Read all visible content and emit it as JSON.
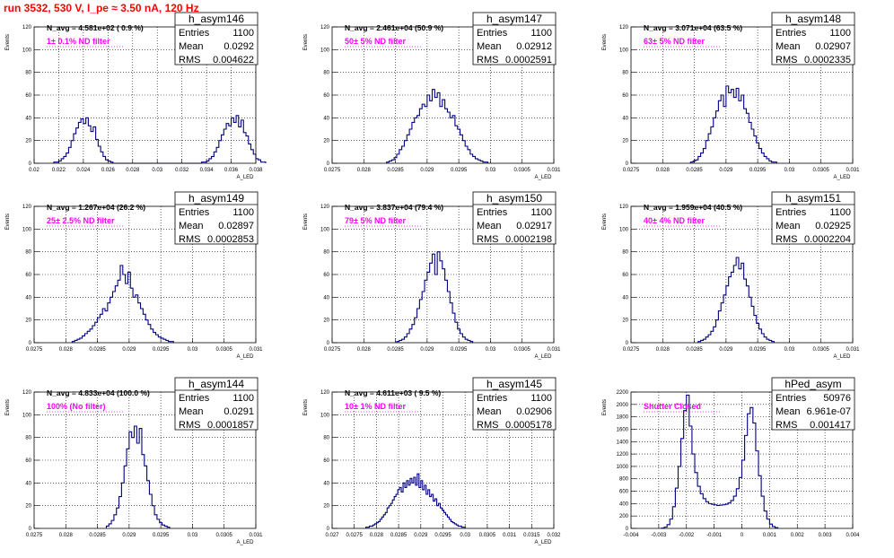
{
  "header": {
    "run_label": "run 3532,   530 V, I_pe ≈ 3.50 nA, 120 Hz"
  },
  "colors": {
    "header": "#ff0000",
    "filter_text": "#ff00ff",
    "histogram": "#000080",
    "grid": "#000000"
  },
  "chart_data": [
    {
      "type": "bar",
      "name": "h_asym146",
      "title": "N_avg = 4.581e+02 ( 0.9 %)",
      "annotation": "1± 0.1% ND filter",
      "xlabel": "A_LED",
      "ylabel": "Events",
      "xlim": [
        0.02,
        0.038
      ],
      "ylim": [
        0,
        120
      ],
      "xticks": [
        0.02,
        0.022,
        0.024,
        0.026,
        0.028,
        0.03,
        0.032,
        0.034,
        0.036,
        0.038
      ],
      "xtick_labels": [
        "0.02",
        "0.022",
        "0.024",
        "0.026",
        "0.028",
        "0.03",
        "0.032",
        "0.034",
        "0.036",
        "0.038"
      ],
      "yticks": [
        0,
        20,
        40,
        60,
        80,
        100,
        120
      ],
      "stats": {
        "title": "h_asym146",
        "rows": [
          [
            "Entries",
            "1100"
          ],
          [
            "Mean",
            "0.0292"
          ],
          [
            "RMS",
            "0.004622"
          ]
        ]
      },
      "bins": {
        "x0": 0.0216,
        "width": 0.0002,
        "values": [
          1,
          1,
          2,
          4,
          6,
          9,
          14,
          20,
          26,
          31,
          36,
          39,
          35,
          40,
          33,
          28,
          32,
          21,
          15,
          10,
          6,
          3,
          2,
          1,
          0,
          0,
          0,
          0,
          0,
          0,
          0,
          0,
          0,
          0,
          0,
          0,
          0,
          0,
          0,
          0,
          0,
          0,
          0,
          0,
          0,
          0,
          0,
          0,
          0,
          0,
          0,
          0,
          0,
          0,
          0,
          0,
          0,
          0,
          0,
          0,
          1,
          1,
          2,
          4,
          6,
          10,
          14,
          20,
          25,
          30,
          35,
          33,
          40,
          36,
          42,
          32,
          38,
          27,
          24,
          17,
          12,
          8,
          4,
          3,
          1,
          1
        ]
      }
    },
    {
      "type": "bar",
      "name": "h_asym147",
      "title": "N_avg = 2.461e+04 (50.9 %)",
      "annotation": "50± 5% ND filter",
      "xlabel": "A_LED",
      "ylabel": "Events",
      "xlim": [
        0.0275,
        0.031
      ],
      "ylim": [
        0,
        120
      ],
      "xticks": [
        0.0275,
        0.028,
        0.0285,
        0.029,
        0.0295,
        0.03,
        0.0305,
        0.031
      ],
      "xtick_labels": [
        "0.0275",
        "0.028",
        "0.0285",
        "0.029",
        "0.0295",
        "0.03",
        "0.0305",
        "0.031"
      ],
      "yticks": [
        0,
        20,
        40,
        60,
        80,
        100,
        120
      ],
      "stats": {
        "title": "h_asym147",
        "rows": [
          [
            "Entries",
            "1100"
          ],
          [
            "Mean",
            "0.02912"
          ],
          [
            "RMS",
            "0.0002591"
          ]
        ]
      },
      "bins": {
        "x0": 0.02836,
        "width": 4e-05,
        "values": [
          1,
          2,
          3,
          5,
          8,
          12,
          15,
          20,
          25,
          30,
          36,
          40,
          42,
          48,
          52,
          50,
          60,
          55,
          65,
          58,
          62,
          50,
          56,
          48,
          45,
          40,
          42,
          33,
          30,
          25,
          20,
          15,
          12,
          8,
          6,
          4,
          3,
          2,
          1,
          1
        ]
      }
    },
    {
      "type": "bar",
      "name": "h_asym148",
      "title": "N_avg = 3.071e+04 (63.5 %)",
      "annotation": "63± 5% ND filter",
      "xlabel": "A_LED",
      "ylabel": "Events",
      "xlim": [
        0.0275,
        0.031
      ],
      "ylim": [
        0,
        120
      ],
      "xticks": [
        0.0275,
        0.028,
        0.0285,
        0.029,
        0.0295,
        0.03,
        0.0305,
        0.031
      ],
      "xtick_labels": [
        "0.0275",
        "0.028",
        "0.0285",
        "0.029",
        "0.0295",
        "0.03",
        "0.0305",
        "0.031"
      ],
      "yticks": [
        0,
        20,
        40,
        60,
        80,
        100,
        120
      ],
      "stats": {
        "title": "h_asym148",
        "rows": [
          [
            "Entries",
            "1100"
          ],
          [
            "Mean",
            "0.02907"
          ],
          [
            "RMS",
            "0.0002335"
          ]
        ]
      },
      "bins": {
        "x0": 0.02844,
        "width": 4e-05,
        "values": [
          1,
          2,
          3,
          6,
          9,
          13,
          20,
          26,
          32,
          40,
          46,
          55,
          60,
          50,
          68,
          62,
          65,
          58,
          66,
          55,
          60,
          48,
          44,
          36,
          30,
          24,
          18,
          13,
          9,
          6,
          4,
          2,
          1,
          1
        ]
      }
    },
    {
      "type": "bar",
      "name": "h_asym149",
      "title": "N_avg = 1.267e+04 (26.2 %)",
      "annotation": "25± 2.5% ND filter",
      "xlabel": "A_LED",
      "ylabel": "Events",
      "xlim": [
        0.0275,
        0.031
      ],
      "ylim": [
        0,
        120
      ],
      "xticks": [
        0.0275,
        0.028,
        0.0285,
        0.029,
        0.0295,
        0.03,
        0.0305,
        0.031
      ],
      "xtick_labels": [
        "0.0275",
        "0.028",
        "0.0285",
        "0.029",
        "0.0295",
        "0.03",
        "0.0305",
        "0.031"
      ],
      "yticks": [
        0,
        20,
        40,
        60,
        80,
        100,
        120
      ],
      "stats": {
        "title": "h_asym149",
        "rows": [
          [
            "Entries",
            "1100"
          ],
          [
            "Mean",
            "0.02897"
          ],
          [
            "RMS",
            "0.0002853"
          ]
        ]
      },
      "bins": {
        "x0": 0.0281,
        "width": 4e-05,
        "values": [
          1,
          2,
          3,
          4,
          6,
          8,
          10,
          12,
          15,
          18,
          22,
          25,
          30,
          28,
          35,
          40,
          45,
          50,
          55,
          68,
          60,
          52,
          62,
          48,
          40,
          42,
          35,
          30,
          25,
          20,
          16,
          12,
          9,
          7,
          5,
          4,
          3,
          2,
          1,
          1
        ]
      }
    },
    {
      "type": "bar",
      "name": "h_asym150",
      "title": "N_avg = 3.837e+04 (79.4 %)",
      "annotation": "79± 5% ND filter",
      "xlabel": "A_LED",
      "ylabel": "Events",
      "xlim": [
        0.0275,
        0.031
      ],
      "ylim": [
        0,
        120
      ],
      "xticks": [
        0.0275,
        0.028,
        0.0285,
        0.029,
        0.0295,
        0.03,
        0.0305,
        0.031
      ],
      "xtick_labels": [
        "0.0275",
        "0.028",
        "0.0285",
        "0.029",
        "0.0295",
        "0.03",
        "0.0305",
        "0.031"
      ],
      "yticks": [
        0,
        20,
        40,
        60,
        80,
        100,
        120
      ],
      "stats": {
        "title": "h_asym150",
        "rows": [
          [
            "Entries",
            "1100"
          ],
          [
            "Mean",
            "0.02917"
          ],
          [
            "RMS",
            "0.0002198"
          ]
        ]
      },
      "bins": {
        "x0": 0.02852,
        "width": 4e-05,
        "values": [
          1,
          2,
          3,
          5,
          8,
          12,
          16,
          22,
          30,
          38,
          45,
          55,
          62,
          70,
          78,
          60,
          80,
          72,
          65,
          55,
          45,
          35,
          26,
          18,
          12,
          8,
          5,
          3,
          2,
          1
        ]
      }
    },
    {
      "type": "bar",
      "name": "h_asym151",
      "title": "N_avg = 1.959e+04 (40.5 %)",
      "annotation": "40± 4% ND filter",
      "xlabel": "A_LED",
      "ylabel": "Events",
      "xlim": [
        0.0275,
        0.031
      ],
      "ylim": [
        0,
        120
      ],
      "xticks": [
        0.0275,
        0.028,
        0.0285,
        0.029,
        0.0295,
        0.03,
        0.0305,
        0.031
      ],
      "xtick_labels": [
        "0.0275",
        "0.028",
        "0.0285",
        "0.029",
        "0.0295",
        "0.03",
        "0.0305",
        "0.031"
      ],
      "yticks": [
        0,
        20,
        40,
        60,
        80,
        100,
        120
      ],
      "stats": {
        "title": "h_asym151",
        "rows": [
          [
            "Entries",
            "1100"
          ],
          [
            "Mean",
            "0.02925"
          ],
          [
            "RMS",
            "0.0002204"
          ]
        ]
      },
      "bins": {
        "x0": 0.02856,
        "width": 4e-05,
        "values": [
          1,
          2,
          3,
          5,
          7,
          10,
          14,
          20,
          28,
          35,
          42,
          50,
          58,
          62,
          68,
          75,
          65,
          70,
          56,
          50,
          40,
          32,
          24,
          17,
          12,
          8,
          5,
          3,
          2,
          1
        ]
      }
    },
    {
      "type": "bar",
      "name": "h_asym144",
      "title": "N_avg = 4.833e+04 (100.0 %)",
      "annotation": "100% (No filter)",
      "xlabel": "A_LED",
      "ylabel": "Events",
      "xlim": [
        0.0275,
        0.031
      ],
      "ylim": [
        0,
        120
      ],
      "xticks": [
        0.0275,
        0.028,
        0.0285,
        0.029,
        0.0295,
        0.03,
        0.0305,
        0.031
      ],
      "xtick_labels": [
        "0.0275",
        "0.028",
        "0.0285",
        "0.029",
        "0.0295",
        "0.03",
        "0.0305",
        "0.031"
      ],
      "yticks": [
        0,
        20,
        40,
        60,
        80,
        100,
        120
      ],
      "stats": {
        "title": "h_asym144",
        "rows": [
          [
            "Entries",
            "1100"
          ],
          [
            "Mean",
            "0.0291"
          ],
          [
            "RMS",
            "0.0001857"
          ]
        ]
      },
      "bins": {
        "x0": 0.02864,
        "width": 4e-05,
        "values": [
          2,
          4,
          7,
          12,
          18,
          28,
          40,
          55,
          70,
          85,
          80,
          90,
          75,
          88,
          65,
          55,
          42,
          30,
          20,
          12,
          8,
          5,
          3,
          2,
          1
        ]
      }
    },
    {
      "type": "bar",
      "name": "h_asym145",
      "title": "N_avg = 4.611e+03 ( 9.5 %)",
      "annotation": "10± 1% ND filter",
      "xlabel": "A_LED",
      "ylabel": "Events",
      "xlim": [
        0.027,
        0.032
      ],
      "ylim": [
        0,
        120
      ],
      "xticks": [
        0.027,
        0.0275,
        0.028,
        0.0285,
        0.029,
        0.0295,
        0.03,
        0.0305,
        0.031,
        0.0315,
        0.032
      ],
      "xtick_labels": [
        "0.027",
        "0.0275",
        "0.028",
        "0.0285",
        "0.029",
        "0.0295",
        "0.03",
        "0.0305",
        "0.031",
        "0.0315",
        "0.032"
      ],
      "yticks": [
        0,
        20,
        40,
        60,
        80,
        100,
        120
      ],
      "stats": {
        "title": "h_asym145",
        "rows": [
          [
            "Entries",
            "1100"
          ],
          [
            "Mean",
            "0.02906"
          ],
          [
            "RMS",
            "0.0005178"
          ]
        ]
      },
      "bins": {
        "x0": 0.02776,
        "width": 4e-05,
        "values": [
          1,
          1,
          2,
          2,
          3,
          4,
          5,
          6,
          8,
          10,
          12,
          14,
          18,
          20,
          22,
          25,
          28,
          30,
          34,
          36,
          32,
          40,
          36,
          42,
          38,
          44,
          40,
          45,
          38,
          48,
          36,
          42,
          34,
          38,
          30,
          34,
          28,
          30,
          24,
          26,
          20,
          22,
          18,
          16,
          14,
          12,
          10,
          8,
          6,
          5,
          4,
          3,
          2,
          2,
          1,
          1
        ]
      }
    },
    {
      "type": "bar",
      "name": "hPed_asym",
      "title": "",
      "annotation": "Shutter Closed",
      "xlabel": "",
      "ylabel": "Events",
      "xlim": [
        -0.004,
        0.004
      ],
      "ylim": [
        0,
        2200
      ],
      "xticks": [
        -0.004,
        -0.003,
        -0.002,
        -0.001,
        0,
        0.001,
        0.002,
        0.003,
        0.004
      ],
      "xtick_labels": [
        "-0.004",
        "-0.003",
        "-0.002",
        "-0.001",
        "0",
        "0.001",
        "0.002",
        "0.003",
        "0.004"
      ],
      "yticks": [
        0,
        200,
        400,
        600,
        800,
        1000,
        1200,
        1400,
        1600,
        1800,
        2000,
        2200
      ],
      "stats": {
        "title": "hPed_asym",
        "rows": [
          [
            "Entries",
            "50976"
          ],
          [
            "Mean",
            "6.961e-07"
          ],
          [
            "RMS",
            "0.001417"
          ]
        ]
      },
      "bins": {
        "x0": -0.0029,
        "width": 0.0001,
        "values": [
          5,
          20,
          60,
          150,
          350,
          650,
          1000,
          1450,
          1900,
          2150,
          1650,
          1200,
          900,
          680,
          560,
          480,
          430,
          400,
          390,
          380,
          370,
          375,
          380,
          390,
          410,
          450,
          520,
          640,
          820,
          1100,
          1500,
          1850,
          1950,
          1700,
          1250,
          850,
          520,
          280,
          150,
          70,
          30,
          12
        ]
      }
    }
  ]
}
